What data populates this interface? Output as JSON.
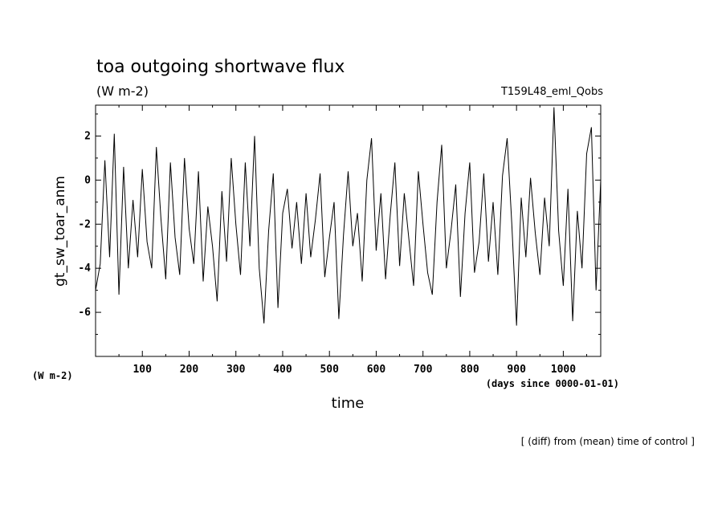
{
  "chart_data": {
    "type": "line",
    "title": "toa outgoing shortwave flux",
    "units": "(W m-2)",
    "run_name": "T159L48_eml_Qobs",
    "ylabel": "gt_sw_toar_anm",
    "xlabel": "time",
    "y_unit_label": "(W m-2)",
    "x_unit_label": "(days since 0000-01-01)",
    "footnote": "[ (diff) from (mean) time of control ]",
    "xlim": [
      0,
      1080
    ],
    "ylim": [
      -8,
      3.4
    ],
    "x_ticks": [
      100,
      200,
      300,
      400,
      500,
      600,
      700,
      800,
      900,
      1000
    ],
    "y_ticks": [
      2,
      0,
      -2,
      -4,
      -6
    ],
    "grid": false,
    "series": [
      {
        "x": [
          0,
          10,
          20,
          30,
          40,
          50,
          60,
          70,
          80,
          90,
          100,
          110,
          120,
          130,
          140,
          150,
          160,
          170,
          180,
          190,
          200,
          210,
          220,
          230,
          240,
          250,
          260,
          270,
          280,
          290,
          300,
          310,
          320,
          330,
          340,
          350,
          360,
          370,
          380,
          390,
          400,
          410,
          420,
          430,
          440,
          450,
          460,
          470,
          480,
          490,
          500,
          510,
          520,
          530,
          540,
          550,
          560,
          570,
          580,
          590,
          600,
          610,
          620,
          630,
          640,
          650,
          660,
          670,
          680,
          690,
          700,
          710,
          720,
          730,
          740,
          750,
          760,
          770,
          780,
          790,
          800,
          810,
          820,
          830,
          840,
          850,
          860,
          870,
          880,
          890,
          900,
          910,
          920,
          930,
          940,
          950,
          960,
          970,
          980,
          990,
          1000,
          1010,
          1020,
          1030,
          1040,
          1050,
          1060,
          1070,
          1080
        ],
        "y": [
          -5.0,
          -3.8,
          0.9,
          -3.5,
          2.1,
          -5.2,
          0.6,
          -4.0,
          -0.9,
          -3.5,
          0.5,
          -2.8,
          -4.0,
          1.5,
          -1.8,
          -4.5,
          0.8,
          -2.6,
          -4.3,
          1.0,
          -2.2,
          -3.8,
          0.4,
          -4.6,
          -1.2,
          -3.0,
          -5.5,
          -0.5,
          -3.7,
          1.0,
          -2.0,
          -4.3,
          0.8,
          -3.0,
          2.0,
          -4.0,
          -6.5,
          -2.3,
          0.3,
          -5.8,
          -1.5,
          -0.4,
          -3.1,
          -1.0,
          -3.8,
          -0.6,
          -3.5,
          -1.8,
          0.3,
          -4.4,
          -2.6,
          -1.0,
          -6.3,
          -2.5,
          0.4,
          -3.0,
          -1.5,
          -4.6,
          0.0,
          1.9,
          -3.2,
          -0.6,
          -4.5,
          -1.6,
          0.8,
          -3.9,
          -0.6,
          -2.7,
          -4.8,
          0.4,
          -2.0,
          -4.2,
          -5.2,
          -1.0,
          1.6,
          -4.0,
          -2.3,
          -0.2,
          -5.3,
          -1.5,
          0.8,
          -4.2,
          -2.8,
          0.3,
          -3.7,
          -1.0,
          -4.3,
          0.2,
          1.9,
          -2.0,
          -6.6,
          -0.8,
          -3.5,
          0.1,
          -2.4,
          -4.3,
          -0.8,
          -3.0,
          3.3,
          -2.3,
          -4.8,
          -0.4,
          -6.4,
          -1.4,
          -4.0,
          1.2,
          2.4,
          -5.0,
          0.0
        ]
      }
    ]
  }
}
